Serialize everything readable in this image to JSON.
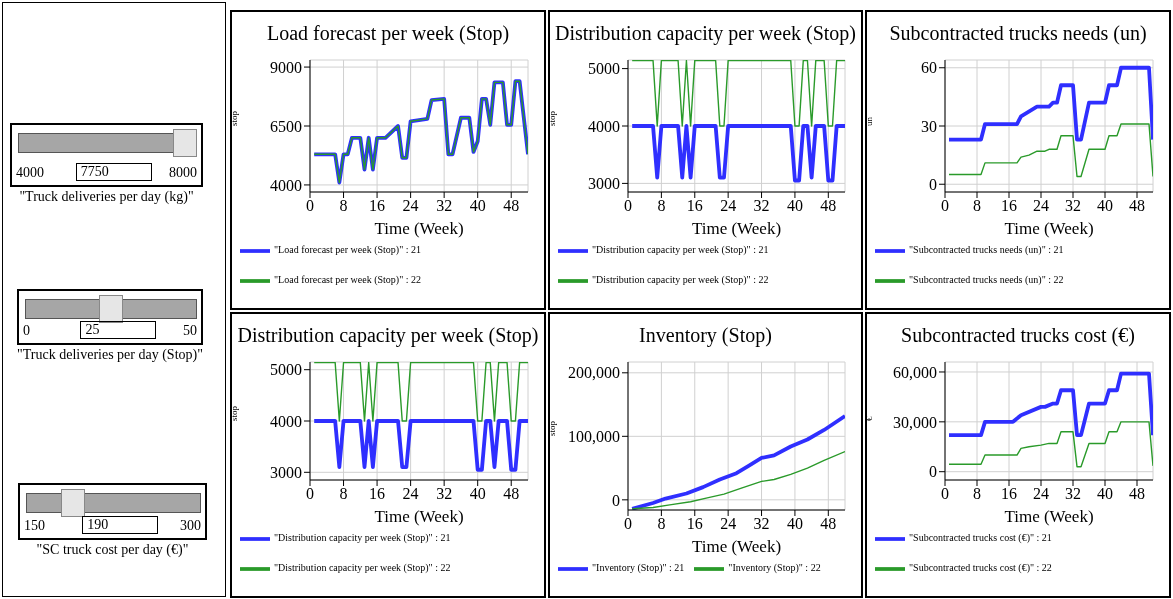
{
  "chart_data": [
    {
      "type": "other",
      "title": "\"Truck deliveries per day (kg)\"",
      "annotations": [
        "4000",
        "7750",
        "8000"
      ]
    },
    {
      "type": "other",
      "title": "\"Truck deliveries per day (Stop)\"",
      "annotations": [
        "0",
        "25",
        "50"
      ]
    },
    {
      "type": "other",
      "title": "\"SC truck cost per day (€)\"",
      "annotations": [
        "150",
        "190",
        "300"
      ]
    },
    {
      "type": "line",
      "title": "Load forecast per week (Stop)",
      "xlabel": "Time (Week)",
      "ylabel": "stop",
      "xlim": [
        0,
        52
      ],
      "xticks": [
        0,
        8,
        16,
        24,
        32,
        40,
        48
      ],
      "ylim": [
        3700,
        9300
      ],
      "yticks": [
        4000,
        6500,
        9000
      ],
      "grid": true,
      "legend": "bottom",
      "x": [
        1,
        6,
        7,
        8,
        9,
        10,
        12,
        13,
        14,
        15,
        16,
        18,
        21,
        22,
        23,
        24,
        28,
        29,
        32,
        33,
        34,
        36,
        38,
        39,
        40,
        41,
        42,
        43,
        44,
        46,
        47,
        48,
        49,
        50,
        52
      ],
      "series": [
        {
          "name": "\"Load forecast per week (Stop)\" : 21",
          "color": "#2f2fff",
          "values": [
            5300,
            5300,
            4100,
            5300,
            5300,
            6000,
            6000,
            4650,
            6000,
            4650,
            6000,
            6000,
            6500,
            5150,
            5150,
            6700,
            6800,
            7600,
            7650,
            5300,
            5300,
            6850,
            6850,
            5400,
            5850,
            7650,
            7650,
            6550,
            8350,
            8350,
            6550,
            6550,
            8400,
            8400,
            5300
          ]
        },
        {
          "name": "\"Load forecast per week (Stop)\" : 22",
          "color": "#2a9a2a",
          "values": [
            5300,
            5300,
            4100,
            5300,
            5300,
            6000,
            6000,
            4650,
            6000,
            4650,
            6000,
            6000,
            6500,
            5150,
            5150,
            6700,
            6800,
            7600,
            7650,
            5300,
            5300,
            6850,
            6850,
            5400,
            5850,
            7650,
            7650,
            6550,
            8350,
            8350,
            6550,
            6550,
            8400,
            8400,
            5300
          ]
        }
      ]
    },
    {
      "type": "line",
      "title": "Distribution capacity per week (Stop)",
      "xlabel": "Time (Week)",
      "ylabel": "stop",
      "xlim": [
        0,
        52
      ],
      "xticks": [
        0,
        8,
        16,
        24,
        32,
        40,
        48
      ],
      "ylim": [
        2850,
        5150
      ],
      "yticks": [
        3000,
        4000,
        5000
      ],
      "grid": true,
      "legend": "bottom",
      "x": [
        1,
        6,
        7,
        8,
        12,
        13,
        14,
        15,
        16,
        21,
        22,
        23,
        24,
        39,
        40,
        41,
        42,
        43,
        44,
        45,
        47,
        48,
        49,
        50,
        52
      ],
      "series": [
        {
          "name": "\"Distribution capacity per week (Stop)\" : 21",
          "color": "#2f2fff",
          "values": [
            4000,
            4000,
            3100,
            4000,
            4000,
            3100,
            4000,
            3100,
            4000,
            4000,
            3100,
            3100,
            4000,
            4000,
            3050,
            3050,
            4000,
            4000,
            3100,
            4000,
            4000,
            3050,
            3050,
            4000,
            4000
          ]
        },
        {
          "name": "\"Distribution capacity per week (Stop)\" : 22",
          "color": "#2a9a2a",
          "values": [
            5140,
            5140,
            4000,
            5140,
            5140,
            4000,
            5140,
            4000,
            5140,
            5140,
            4000,
            4000,
            5140,
            5140,
            4000,
            4000,
            5140,
            5140,
            4000,
            5140,
            5140,
            4000,
            4000,
            5140,
            5140
          ]
        }
      ]
    },
    {
      "type": "line",
      "title": "Subcontracted trucks needs (un)",
      "xlabel": "Time (Week)",
      "ylabel": "un",
      "xlim": [
        0,
        52
      ],
      "xticks": [
        0,
        8,
        16,
        24,
        32,
        40,
        48
      ],
      "ylim": [
        -4,
        64
      ],
      "yticks": [
        0,
        30,
        60
      ],
      "grid": true,
      "legend": "bottom",
      "series": [
        {
          "name": "\"Subcontracted trucks needs (un)\" : 21",
          "color": "#2f2fff",
          "x": [
            1,
            9,
            10,
            18,
            19,
            23,
            26,
            27,
            28,
            29,
            32,
            33,
            34,
            36,
            40,
            41,
            43,
            44,
            51,
            52
          ],
          "values": [
            23,
            23,
            31,
            31,
            35,
            40,
            40,
            42,
            42,
            51,
            51,
            23,
            23,
            42,
            42,
            51,
            51,
            60,
            60,
            23
          ]
        },
        {
          "name": "\"Subcontracted trucks needs (un)\" : 22",
          "color": "#2a9a2a",
          "x": [
            1,
            9,
            10,
            18,
            19,
            21,
            23,
            25,
            26,
            28,
            29,
            32,
            33,
            34,
            36,
            40,
            41,
            43,
            44,
            51,
            52
          ],
          "values": [
            5,
            5,
            11,
            11,
            14,
            15,
            17,
            17,
            18,
            18,
            25,
            25,
            4,
            4,
            18,
            18,
            25,
            25,
            31,
            31,
            4
          ]
        }
      ]
    },
    {
      "type": "line",
      "title": "Distribution capacity per week (Stop)",
      "xlabel": "Time (Week)",
      "ylabel": "stop",
      "xlim": [
        0,
        52
      ],
      "xticks": [
        0,
        8,
        16,
        24,
        32,
        40,
        48
      ],
      "ylim": [
        2850,
        5150
      ],
      "yticks": [
        3000,
        4000,
        5000
      ],
      "grid": true,
      "legend": "bottom",
      "x": [
        1,
        6,
        7,
        8,
        12,
        13,
        14,
        15,
        16,
        21,
        22,
        23,
        24,
        39,
        40,
        41,
        42,
        43,
        44,
        45,
        47,
        48,
        49,
        50,
        52
      ],
      "series": [
        {
          "name": "\"Distribution capacity per week (Stop)\" : 21",
          "color": "#2f2fff",
          "values": [
            4000,
            4000,
            3100,
            4000,
            4000,
            3100,
            4000,
            3100,
            4000,
            4000,
            3100,
            3100,
            4000,
            4000,
            3050,
            3050,
            4000,
            4000,
            3100,
            4000,
            4000,
            3050,
            3050,
            4000,
            4000
          ]
        },
        {
          "name": "\"Distribution capacity per week (Stop)\" : 22",
          "color": "#2a9a2a",
          "values": [
            5140,
            5140,
            4000,
            5140,
            5140,
            4000,
            5140,
            4000,
            5140,
            5140,
            4000,
            4000,
            5140,
            5140,
            4000,
            4000,
            5140,
            5140,
            4000,
            5140,
            5140,
            4000,
            4000,
            5140,
            5140
          ]
        }
      ]
    },
    {
      "type": "line",
      "title": "Inventory (Stop)",
      "xlabel": "Time (Week)",
      "ylabel": "stop",
      "xlim": [
        0,
        52
      ],
      "xticks": [
        0,
        8,
        16,
        24,
        32,
        40,
        48
      ],
      "ylim": [
        -16000,
        217000
      ],
      "yticks": [
        0,
        {
          "value": 100000,
          "label": "100,000"
        },
        {
          "value": 200000,
          "label": "200,000"
        }
      ],
      "grid": true,
      "legend": "bottom",
      "series": [
        {
          "name": "\"Inventory (Stop)\" : 21",
          "color": "#2f2fff",
          "x": [
            1,
            6,
            9,
            14,
            18,
            22,
            26,
            29,
            32,
            35,
            39,
            43,
            47,
            52
          ],
          "values": [
            -14000,
            -5000,
            2000,
            10000,
            20000,
            32000,
            42000,
            54000,
            66000,
            70000,
            84000,
            95000,
            110000,
            132000
          ]
        },
        {
          "name": "\"Inventory (Stop)\" : 22",
          "color": "#2a9a2a",
          "x": [
            1,
            6,
            10,
            15,
            19,
            23,
            27,
            32,
            35,
            39,
            43,
            47,
            52
          ],
          "values": [
            -14000,
            -12000,
            -8000,
            -3000,
            3000,
            9000,
            18000,
            29000,
            32000,
            40000,
            50000,
            62000,
            76000
          ]
        }
      ]
    },
    {
      "type": "line",
      "title": "Subcontracted trucks cost (€)",
      "xlabel": "Time (Week)",
      "ylabel": "€",
      "xlim": [
        0,
        52
      ],
      "xticks": [
        0,
        8,
        16,
        24,
        32,
        40,
        48
      ],
      "ylim": [
        -5000,
        66000
      ],
      "yticks": [
        0,
        {
          "value": 30000,
          "label": "30,000"
        },
        {
          "value": 60000,
          "label": "60,000"
        }
      ],
      "grid": true,
      "legend": "bottom",
      "series": [
        {
          "name": "\"Subcontracted trucks cost (€)\" : 21",
          "color": "#2f2fff",
          "x": [
            1,
            9,
            10,
            17,
            19,
            24,
            25,
            27,
            28,
            29,
            32,
            33,
            34,
            36,
            40,
            41,
            43,
            44,
            51,
            52
          ],
          "values": [
            22000,
            22000,
            30000,
            30000,
            34000,
            39000,
            39000,
            41000,
            41000,
            49000,
            49000,
            22000,
            22000,
            41000,
            41000,
            49000,
            49000,
            59000,
            59000,
            22000
          ]
        },
        {
          "name": "\"Subcontracted trucks cost (€)\" : 22",
          "color": "#2a9a2a",
          "x": [
            1,
            9,
            10,
            18,
            19,
            21,
            24,
            26,
            28,
            29,
            32,
            33,
            34,
            36,
            40,
            41,
            43,
            44,
            51,
            52
          ],
          "values": [
            4500,
            4500,
            10000,
            10000,
            14000,
            15000,
            16000,
            17000,
            17000,
            24000,
            24000,
            3000,
            3000,
            17000,
            17000,
            24000,
            24000,
            30000,
            30000,
            3500
          ]
        }
      ]
    }
  ]
}
